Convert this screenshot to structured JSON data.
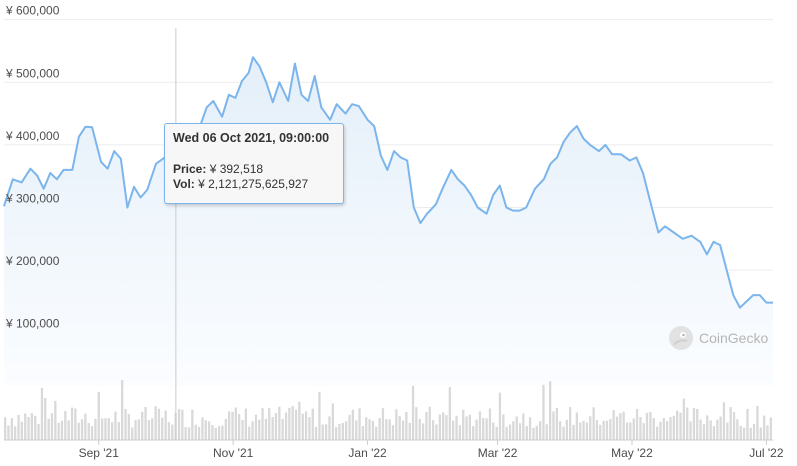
{
  "chart_data": {
    "type": "area",
    "title": "",
    "xlabel": "",
    "ylabel": "",
    "currency_symbol": "¥",
    "ylim": [
      50000,
      625000
    ],
    "y_ticks": [
      "¥ 100,000",
      "¥ 200,000",
      "¥ 300,000",
      "¥ 400,000",
      "¥ 500,000",
      "¥ 600,000"
    ],
    "y_tick_values": [
      100000,
      200000,
      300000,
      400000,
      500000,
      600000
    ],
    "x_range": [
      "2021-07-20",
      "2022-07-04"
    ],
    "x_ticks": [
      {
        "label": "Sep '21",
        "date": "2021-09-01"
      },
      {
        "label": "Nov '21",
        "date": "2021-11-01"
      },
      {
        "label": "Jan '22",
        "date": "2022-01-01"
      },
      {
        "label": "Mar '22",
        "date": "2022-03-01"
      },
      {
        "label": "May '22",
        "date": "2022-05-01"
      },
      {
        "label": "Jul '22",
        "date": "2022-07-01"
      }
    ],
    "series": [
      {
        "values": [
          [
            "2021-07-20",
            302000
          ],
          [
            "2021-07-24",
            345000
          ],
          [
            "2021-07-28",
            340000
          ],
          [
            "2021-08-01",
            362000
          ],
          [
            "2021-08-04",
            351000
          ],
          [
            "2021-08-07",
            330000
          ],
          [
            "2021-08-10",
            355000
          ],
          [
            "2021-08-13",
            345000
          ],
          [
            "2021-08-16",
            360000
          ],
          [
            "2021-08-20",
            360000
          ],
          [
            "2021-08-23",
            413000
          ],
          [
            "2021-08-26",
            429000
          ],
          [
            "2021-08-29",
            428000
          ],
          [
            "2021-09-02",
            373000
          ],
          [
            "2021-09-05",
            362000
          ],
          [
            "2021-09-08",
            390000
          ],
          [
            "2021-09-11",
            378000
          ],
          [
            "2021-09-14",
            300000
          ],
          [
            "2021-09-17",
            333000
          ],
          [
            "2021-09-20",
            316000
          ],
          [
            "2021-09-23",
            328000
          ],
          [
            "2021-09-27",
            370000
          ],
          [
            "2021-10-01",
            380000
          ],
          [
            "2021-10-04",
            392000
          ],
          [
            "2021-10-06",
            392518
          ],
          [
            "2021-10-09",
            410000
          ],
          [
            "2021-10-13",
            415000
          ],
          [
            "2021-10-16",
            420000
          ],
          [
            "2021-10-20",
            460000
          ],
          [
            "2021-10-23",
            470000
          ],
          [
            "2021-10-27",
            445000
          ],
          [
            "2021-10-30",
            480000
          ],
          [
            "2021-11-02",
            475000
          ],
          [
            "2021-11-05",
            502000
          ],
          [
            "2021-11-08",
            515000
          ],
          [
            "2021-11-10",
            540000
          ],
          [
            "2021-11-13",
            525000
          ],
          [
            "2021-11-16",
            500000
          ],
          [
            "2021-11-19",
            468000
          ],
          [
            "2021-11-22",
            500000
          ],
          [
            "2021-11-26",
            470000
          ],
          [
            "2021-11-29",
            530000
          ],
          [
            "2021-12-02",
            480000
          ],
          [
            "2021-12-05",
            470000
          ],
          [
            "2021-12-08",
            510000
          ],
          [
            "2021-12-11",
            460000
          ],
          [
            "2021-12-15",
            440000
          ],
          [
            "2021-12-18",
            465000
          ],
          [
            "2021-12-22",
            450000
          ],
          [
            "2021-12-25",
            465000
          ],
          [
            "2021-12-28",
            462000
          ],
          [
            "2022-01-01",
            440000
          ],
          [
            "2022-01-04",
            430000
          ],
          [
            "2022-01-07",
            383000
          ],
          [
            "2022-01-10",
            360000
          ],
          [
            "2022-01-13",
            390000
          ],
          [
            "2022-01-16",
            380000
          ],
          [
            "2022-01-19",
            375000
          ],
          [
            "2022-01-22",
            300000
          ],
          [
            "2022-01-25",
            275000
          ],
          [
            "2022-01-28",
            290000
          ],
          [
            "2022-02-01",
            305000
          ],
          [
            "2022-02-04",
            330000
          ],
          [
            "2022-02-08",
            360000
          ],
          [
            "2022-02-11",
            345000
          ],
          [
            "2022-02-14",
            335000
          ],
          [
            "2022-02-17",
            320000
          ],
          [
            "2022-02-20",
            300000
          ],
          [
            "2022-02-24",
            290000
          ],
          [
            "2022-02-27",
            320000
          ],
          [
            "2022-03-02",
            335000
          ],
          [
            "2022-03-05",
            300000
          ],
          [
            "2022-03-08",
            295000
          ],
          [
            "2022-03-11",
            295000
          ],
          [
            "2022-03-14",
            300000
          ],
          [
            "2022-03-18",
            330000
          ],
          [
            "2022-03-22",
            345000
          ],
          [
            "2022-03-25",
            370000
          ],
          [
            "2022-03-28",
            380000
          ],
          [
            "2022-03-31",
            405000
          ],
          [
            "2022-04-03",
            420000
          ],
          [
            "2022-04-06",
            430000
          ],
          [
            "2022-04-09",
            410000
          ],
          [
            "2022-04-12",
            400000
          ],
          [
            "2022-04-16",
            390000
          ],
          [
            "2022-04-19",
            400000
          ],
          [
            "2022-04-22",
            385000
          ],
          [
            "2022-04-26",
            385000
          ],
          [
            "2022-04-30",
            375000
          ],
          [
            "2022-05-03",
            380000
          ],
          [
            "2022-05-06",
            355000
          ],
          [
            "2022-05-10",
            300000
          ],
          [
            "2022-05-13",
            260000
          ],
          [
            "2022-05-16",
            270000
          ],
          [
            "2022-05-20",
            260000
          ],
          [
            "2022-05-24",
            250000
          ],
          [
            "2022-05-28",
            255000
          ],
          [
            "2022-06-01",
            245000
          ],
          [
            "2022-06-04",
            225000
          ],
          [
            "2022-06-07",
            245000
          ],
          [
            "2022-06-10",
            240000
          ],
          [
            "2022-06-13",
            200000
          ],
          [
            "2022-06-16",
            160000
          ],
          [
            "2022-06-19",
            140000
          ],
          [
            "2022-06-22",
            150000
          ],
          [
            "2022-06-25",
            160000
          ],
          [
            "2022-06-28",
            160000
          ],
          [
            "2022-07-01",
            148000
          ],
          [
            "2022-07-04",
            148000
          ]
        ]
      }
    ],
    "volume_bars": 230,
    "colors": {
      "line": "#7cb5ec",
      "fill_top": "#e4eff9",
      "fill_bottom": "#ffffff",
      "volume": "#d9d9d9",
      "grid": "#ececec",
      "crosshair": "#cccccc"
    }
  },
  "tooltip": {
    "date": "Wed 06 Oct 2021, 09:00:00",
    "price_label": "Price:",
    "price_value": "¥ 392,518",
    "vol_label": "Vol:",
    "vol_value": "¥ 2,121,275,625,927",
    "hover_date": "2021-10-06"
  },
  "watermark": {
    "text": "CoinGecko",
    "icon": "gecko-logo-icon"
  }
}
